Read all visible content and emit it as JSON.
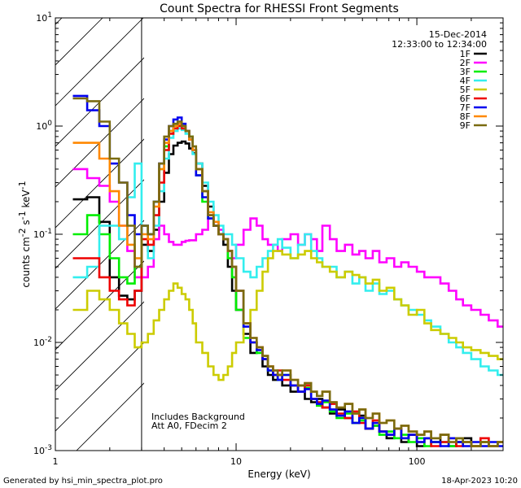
{
  "chart_data": {
    "type": "line",
    "title": "Count Spectra for RHESSI Front Segments",
    "xlabel": "Energy (keV)",
    "ylabel": {
      "main": "counts cm",
      "exp1": "-2",
      "mid": " s",
      "exp2": "-1",
      "mid2": " keV",
      "exp3": "-1"
    },
    "xscale": "log",
    "yscale": "log",
    "xlim": [
      1,
      300
    ],
    "ylim": [
      0.001,
      10
    ],
    "hatched_region_x": [
      1,
      3
    ],
    "x_ticks": [
      {
        "value": 1,
        "label": "1"
      },
      {
        "value": 10,
        "label": "10"
      },
      {
        "value": 100,
        "label": "100"
      }
    ],
    "y_ticks": [
      {
        "value": 0.001,
        "base": "10",
        "exp": "-3"
      },
      {
        "value": 0.01,
        "base": "10",
        "exp": "-2"
      },
      {
        "value": 0.1,
        "base": "10",
        "exp": "-1"
      },
      {
        "value": 1,
        "base": "10",
        "exp": "0"
      },
      {
        "value": 10,
        "base": "10",
        "exp": "1"
      }
    ],
    "date": "15-Dec-2014",
    "time_range": "12:33:00 to 12:34:00",
    "annotations": [
      "Includes Background",
      "Att A0, FDecim 2"
    ],
    "energy_edges": [
      1.25,
      1.5,
      1.75,
      2.0,
      2.25,
      2.5,
      2.75,
      3.0,
      3.25,
      3.5,
      3.75,
      4.0,
      4.25,
      4.5,
      4.75,
      5.0,
      5.25,
      5.5,
      5.75,
      6.0,
      6.5,
      7.0,
      7.5,
      8.0,
      8.5,
      9.0,
      9.5,
      10.0,
      11.0,
      12.0,
      13.0,
      14.0,
      15.0,
      16.0,
      17.0,
      18.0,
      20.0,
      22.0,
      24.0,
      26.0,
      28.0,
      30.0,
      33.0,
      36.0,
      40.0,
      44.0,
      48.0,
      52.0,
      57.0,
      62.0,
      68.0,
      75.0,
      82.0,
      90.0,
      100.0,
      110.0,
      120.0,
      135.0,
      150.0,
      165.0,
      180.0,
      200.0,
      225.0,
      250.0,
      280.0,
      300.0
    ],
    "series": [
      {
        "name": "1F",
        "color": "#000000",
        "values": [
          0.21,
          0.22,
          0.13,
          0.04,
          0.027,
          0.025,
          0.03,
          0.08,
          0.07,
          0.11,
          0.2,
          0.37,
          0.55,
          0.66,
          0.7,
          0.72,
          0.69,
          0.62,
          0.56,
          0.45,
          0.28,
          0.18,
          0.12,
          0.1,
          0.08,
          0.05,
          0.03,
          0.02,
          0.012,
          0.008,
          0.009,
          0.006,
          0.005,
          0.0045,
          0.005,
          0.004,
          0.0035,
          0.004,
          0.003,
          0.0028,
          0.003,
          0.0025,
          0.0022,
          0.0024,
          0.002,
          0.0018,
          0.0021,
          0.0016,
          0.0017,
          0.0015,
          0.0013,
          0.0016,
          0.0012,
          0.0014,
          0.0011,
          0.0013,
          0.0012,
          0.0014,
          0.0011,
          0.0012,
          0.0013,
          0.0011,
          0.0012,
          0.0011,
          0.0012
        ]
      },
      {
        "name": "2F",
        "color": "#ff00ff",
        "values": [
          0.4,
          0.33,
          0.28,
          0.2,
          0.12,
          0.07,
          0.04,
          0.04,
          0.05,
          0.09,
          0.12,
          0.1,
          0.085,
          0.08,
          0.08,
          0.085,
          0.087,
          0.088,
          0.088,
          0.1,
          0.11,
          0.14,
          0.13,
          0.11,
          0.09,
          0.07,
          0.06,
          0.08,
          0.11,
          0.14,
          0.12,
          0.09,
          0.08,
          0.08,
          0.07,
          0.09,
          0.1,
          0.08,
          0.1,
          0.09,
          0.07,
          0.12,
          0.09,
          0.07,
          0.08,
          0.065,
          0.07,
          0.06,
          0.07,
          0.055,
          0.06,
          0.05,
          0.055,
          0.05,
          0.045,
          0.04,
          0.04,
          0.035,
          0.03,
          0.025,
          0.022,
          0.02,
          0.018,
          0.016,
          0.014
        ]
      },
      {
        "name": "3F",
        "color": "#00ee00",
        "values": [
          0.1,
          0.15,
          0.1,
          0.06,
          0.04,
          0.035,
          0.05,
          0.12,
          0.1,
          0.2,
          0.4,
          0.65,
          0.9,
          1.0,
          1.05,
          1.0,
          0.9,
          0.8,
          0.6,
          0.35,
          0.2,
          0.14,
          0.12,
          0.1,
          0.09,
          0.06,
          0.04,
          0.02,
          0.011,
          0.01,
          0.008,
          0.007,
          0.0055,
          0.005,
          0.0045,
          0.005,
          0.004,
          0.0035,
          0.0038,
          0.003,
          0.0026,
          0.0028,
          0.0023,
          0.002,
          0.0022,
          0.0018,
          0.0019,
          0.0016,
          0.0017,
          0.0014,
          0.0015,
          0.0013,
          0.0014,
          0.0012,
          0.0013,
          0.0011,
          0.0012,
          0.0012,
          0.0011,
          0.0013,
          0.0012,
          0.0011,
          0.0012,
          0.0011,
          0.0012
        ]
      },
      {
        "name": "4F",
        "color": "#33eeee",
        "values": [
          0.04,
          0.05,
          0.12,
          0.12,
          0.09,
          0.22,
          0.45,
          0.12,
          0.06,
          0.12,
          0.25,
          0.5,
          0.78,
          0.9,
          0.95,
          0.92,
          0.85,
          0.75,
          0.55,
          0.45,
          0.3,
          0.2,
          0.15,
          0.12,
          0.1,
          0.1,
          0.08,
          0.06,
          0.045,
          0.04,
          0.05,
          0.06,
          0.07,
          0.08,
          0.09,
          0.075,
          0.06,
          0.08,
          0.1,
          0.07,
          0.06,
          0.05,
          0.05,
          0.04,
          0.045,
          0.035,
          0.04,
          0.03,
          0.035,
          0.028,
          0.03,
          0.025,
          0.022,
          0.02,
          0.018,
          0.016,
          0.014,
          0.012,
          0.01,
          0.009,
          0.008,
          0.007,
          0.006,
          0.0055,
          0.005
        ]
      },
      {
        "name": "5F",
        "color": "#cccc00",
        "values": [
          0.02,
          0.03,
          0.025,
          0.02,
          0.015,
          0.012,
          0.009,
          0.01,
          0.012,
          0.016,
          0.02,
          0.025,
          0.03,
          0.035,
          0.032,
          0.028,
          0.025,
          0.02,
          0.015,
          0.01,
          0.008,
          0.006,
          0.005,
          0.0045,
          0.005,
          0.006,
          0.008,
          0.01,
          0.015,
          0.02,
          0.03,
          0.045,
          0.06,
          0.07,
          0.07,
          0.065,
          0.06,
          0.065,
          0.07,
          0.06,
          0.055,
          0.05,
          0.045,
          0.04,
          0.045,
          0.042,
          0.04,
          0.035,
          0.038,
          0.03,
          0.032,
          0.025,
          0.022,
          0.018,
          0.02,
          0.015,
          0.013,
          0.012,
          0.011,
          0.01,
          0.009,
          0.0085,
          0.008,
          0.0075,
          0.007
        ]
      },
      {
        "name": "6F",
        "color": "#ee0000",
        "values": [
          0.06,
          0.06,
          0.04,
          0.03,
          0.025,
          0.022,
          0.03,
          0.09,
          0.08,
          0.15,
          0.3,
          0.6,
          0.85,
          0.95,
          1.0,
          0.95,
          0.9,
          0.75,
          0.6,
          0.4,
          0.25,
          0.15,
          0.12,
          0.1,
          0.09,
          0.07,
          0.05,
          0.03,
          0.015,
          0.01,
          0.009,
          0.007,
          0.006,
          0.005,
          0.0055,
          0.0045,
          0.004,
          0.0035,
          0.004,
          0.003,
          0.0028,
          0.0025,
          0.0027,
          0.0022,
          0.002,
          0.0023,
          0.0018,
          0.0016,
          0.0019,
          0.0015,
          0.0014,
          0.0016,
          0.0013,
          0.0014,
          0.0012,
          0.0013,
          0.0011,
          0.0012,
          0.0013,
          0.0011,
          0.0012,
          0.0011,
          0.0013,
          0.0011,
          0.0012
        ]
      },
      {
        "name": "7F",
        "color": "#0000ee",
        "values": [
          1.9,
          1.4,
          1.0,
          0.45,
          0.3,
          0.15,
          0.1,
          0.12,
          0.1,
          0.2,
          0.45,
          0.75,
          1.0,
          1.15,
          1.2,
          1.05,
          0.9,
          0.75,
          0.6,
          0.35,
          0.22,
          0.14,
          0.12,
          0.1,
          0.09,
          0.07,
          0.05,
          0.03,
          0.014,
          0.01,
          0.0085,
          0.007,
          0.0055,
          0.005,
          0.0045,
          0.005,
          0.004,
          0.0035,
          0.0037,
          0.003,
          0.0027,
          0.0029,
          0.0024,
          0.0021,
          0.0023,
          0.0018,
          0.002,
          0.0016,
          0.0018,
          0.0015,
          0.0014,
          0.0016,
          0.0013,
          0.0014,
          0.0012,
          0.0013,
          0.0012,
          0.0011,
          0.0013,
          0.0012,
          0.0011,
          0.0012,
          0.0011,
          0.0012,
          0.0011
        ]
      },
      {
        "name": "8F",
        "color": "#ff8800",
        "values": [
          0.7,
          0.7,
          0.5,
          0.25,
          0.12,
          0.08,
          0.06,
          0.1,
          0.09,
          0.18,
          0.4,
          0.7,
          0.9,
          1.0,
          1.05,
          1.0,
          0.9,
          0.75,
          0.6,
          0.4,
          0.25,
          0.16,
          0.13,
          0.1,
          0.09,
          0.07,
          0.05,
          0.03,
          0.015,
          0.011,
          0.009,
          0.0075,
          0.006,
          0.0055,
          0.005,
          0.0055,
          0.0045,
          0.004,
          0.0042,
          0.0035,
          0.0032,
          0.0035,
          0.0028,
          0.0025,
          0.0027,
          0.0022,
          0.0024,
          0.002,
          0.0022,
          0.0018,
          0.0019,
          0.0016,
          0.0017,
          0.0015,
          0.0014,
          0.0015,
          0.0013,
          0.0014,
          0.0012,
          0.0013,
          0.0012,
          0.0011,
          0.0012,
          0.0011,
          0.0012
        ]
      },
      {
        "name": "9F",
        "color": "#7a6b10",
        "values": [
          1.8,
          1.7,
          1.1,
          0.5,
          0.3,
          0.12,
          0.05,
          0.12,
          0.1,
          0.2,
          0.45,
          0.8,
          1.0,
          1.05,
          1.1,
          1.0,
          0.9,
          0.8,
          0.65,
          0.4,
          0.25,
          0.15,
          0.12,
          0.1,
          0.09,
          0.07,
          0.05,
          0.03,
          0.015,
          0.011,
          0.009,
          0.0075,
          0.006,
          0.0055,
          0.005,
          0.0055,
          0.0045,
          0.004,
          0.0042,
          0.0035,
          0.0032,
          0.0035,
          0.0028,
          0.0025,
          0.0027,
          0.0022,
          0.0024,
          0.002,
          0.0022,
          0.0018,
          0.0019,
          0.0016,
          0.0017,
          0.0015,
          0.0014,
          0.0015,
          0.0013,
          0.0014,
          0.0012,
          0.0013,
          0.0012,
          0.0011,
          0.0012,
          0.0011,
          0.0012
        ]
      }
    ]
  },
  "footer": {
    "generated_by": "Generated by hsi_min_spectra_plot.pro",
    "timestamp": "18-Apr-2023 10:20"
  }
}
